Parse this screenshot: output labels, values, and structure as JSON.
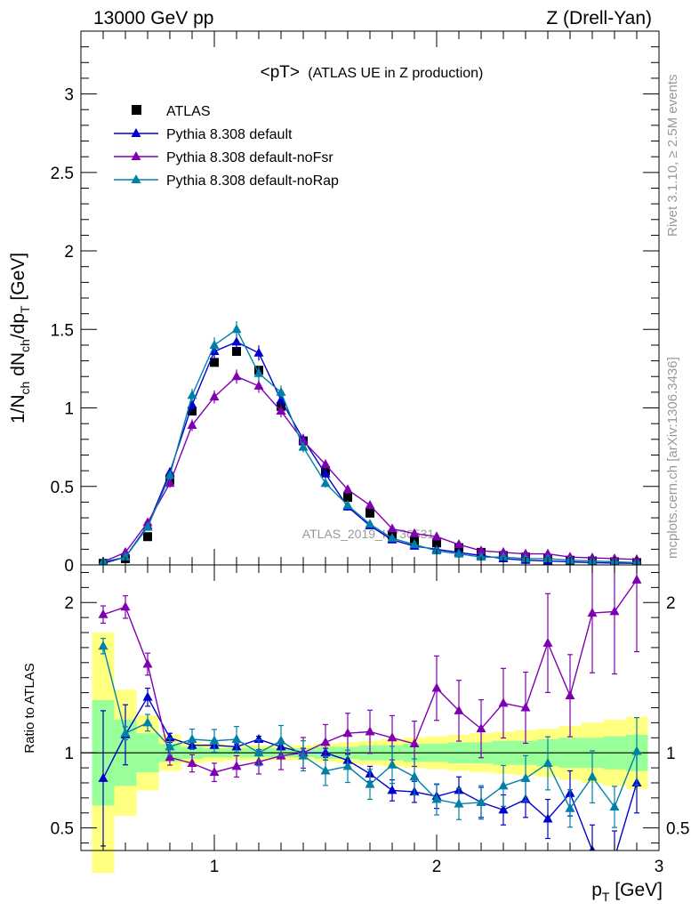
{
  "header": {
    "left": "13000 GeV pp",
    "right": "Z (Drell-Yan)"
  },
  "side_labels": {
    "rivet": "Rivet 3.1.10, ≥ 2.5M events",
    "mcplots": "mcplots.cern.ch [arXiv:1306.3436]"
  },
  "colors": {
    "atlas": "#000000",
    "default": "#0000cc",
    "noFsr": "#7f00b2",
    "noRap": "#0080a8",
    "band_outer": "#ffff80",
    "band_inner": "#99ff99"
  },
  "chart_data": [
    {
      "type": "scatter",
      "title": "<pT>",
      "subtitle": "(ATLAS UE in Z production)",
      "xlabel": "p_T [GeV]",
      "ylabel": "1/N_ch dN_ch/dp_T [GeV]",
      "watermark": "ATLAS_2019_I1736531",
      "xlim": [
        0.4,
        3.0
      ],
      "ylim": [
        0,
        3.4
      ],
      "yticks": [
        0,
        0.5,
        1,
        1.5,
        2,
        2.5,
        3
      ],
      "yticklabels": [
        "0",
        "0.5",
        "1",
        "1.5",
        "2",
        "2.5",
        "3"
      ],
      "legend_position": "top-left",
      "x": [
        0.5,
        0.6,
        0.7,
        0.8,
        0.9,
        1.0,
        1.1,
        1.2,
        1.3,
        1.4,
        1.5,
        1.6,
        1.7,
        1.8,
        1.9,
        2.0,
        2.1,
        2.2,
        2.3,
        2.4,
        2.5,
        2.6,
        2.7,
        2.8,
        2.9
      ],
      "series": [
        {
          "name": "ATLAS",
          "marker": "square",
          "color": "#000000",
          "values": [
            0.01,
            0.04,
            0.18,
            0.54,
            0.98,
            1.29,
            1.36,
            1.24,
            1.01,
            0.79,
            0.6,
            0.43,
            0.33,
            0.19,
            0.15,
            0.14,
            0.11,
            0.08,
            0.06,
            0.05,
            0.04,
            0.03,
            0.025,
            0.02,
            0.015
          ]
        },
        {
          "name": "Pythia 8.308 default",
          "marker": "triangle",
          "color": "#0000cc",
          "values": [
            0.01,
            0.05,
            0.25,
            0.59,
            1.02,
            1.36,
            1.42,
            1.35,
            1.05,
            0.8,
            0.58,
            0.37,
            0.25,
            0.16,
            0.12,
            0.1,
            0.08,
            0.06,
            0.04,
            0.03,
            0.025,
            0.02,
            0.015,
            0.012,
            0.01
          ]
        },
        {
          "name": "Pythia 8.308 default-noFsr",
          "marker": "triangle",
          "color": "#7f00b2",
          "values": [
            0.02,
            0.08,
            0.27,
            0.52,
            0.89,
            1.07,
            1.2,
            1.14,
            0.98,
            0.79,
            0.64,
            0.48,
            0.38,
            0.23,
            0.2,
            0.18,
            0.13,
            0.09,
            0.08,
            0.07,
            0.07,
            0.05,
            0.045,
            0.04,
            0.035
          ]
        },
        {
          "name": "Pythia 8.308 default-noRap",
          "marker": "triangle",
          "color": "#0080a8",
          "values": [
            0.02,
            0.05,
            0.24,
            0.57,
            1.08,
            1.4,
            1.5,
            1.22,
            1.1,
            0.75,
            0.52,
            0.38,
            0.26,
            0.17,
            0.13,
            0.09,
            0.07,
            0.05,
            0.05,
            0.04,
            0.04,
            0.03,
            0.025,
            0.02,
            0.015
          ]
        }
      ]
    },
    {
      "type": "scatter",
      "title": "",
      "ylabel": "Ratio to ATLAS",
      "xlabel": "p_T [GeV]",
      "xlim": [
        0.4,
        3.0
      ],
      "ylim": [
        0.35,
        2.25
      ],
      "xticks": [
        1,
        2,
        3
      ],
      "xticklabels": [
        "1",
        "2",
        "3"
      ],
      "yticks": [
        0.5,
        1,
        2
      ],
      "yticklabels": [
        "0.5",
        "1",
        "2"
      ],
      "reference_line": 1,
      "x": [
        0.5,
        0.6,
        0.7,
        0.8,
        0.9,
        1.0,
        1.1,
        1.2,
        1.3,
        1.4,
        1.5,
        1.6,
        1.7,
        1.8,
        1.9,
        2.0,
        2.1,
        2.2,
        2.3,
        2.4,
        2.5,
        2.6,
        2.7,
        2.8,
        2.9
      ],
      "band_outer_halfwidth": [
        0.8,
        0.42,
        0.25,
        0.12,
        0.07,
        0.06,
        0.05,
        0.05,
        0.05,
        0.05,
        0.06,
        0.07,
        0.08,
        0.09,
        0.1,
        0.11,
        0.12,
        0.13,
        0.14,
        0.15,
        0.16,
        0.18,
        0.2,
        0.22,
        0.24
      ],
      "band_inner_halfwidth": [
        0.35,
        0.22,
        0.13,
        0.06,
        0.04,
        0.03,
        0.03,
        0.03,
        0.03,
        0.03,
        0.04,
        0.04,
        0.05,
        0.05,
        0.06,
        0.06,
        0.07,
        0.07,
        0.08,
        0.08,
        0.09,
        0.1,
        0.1,
        0.11,
        0.12
      ],
      "series": [
        {
          "name": "Pythia 8.308 default",
          "color": "#0000cc",
          "values": [
            0.83,
            1.12,
            1.37,
            1.1,
            1.05,
            1.05,
            1.04,
            1.09,
            1.04,
            1.0,
            1.0,
            0.95,
            0.86,
            0.75,
            0.74,
            0.71,
            0.75,
            0.67,
            0.62,
            0.69,
            0.56,
            0.73,
            0.35,
            0.3,
            0.8
          ],
          "errors": [
            0.45,
            0.2,
            0.06,
            0.03,
            0.02,
            0.02,
            0.02,
            0.02,
            0.02,
            0.03,
            0.03,
            0.04,
            0.05,
            0.07,
            0.07,
            0.08,
            0.09,
            0.1,
            0.1,
            0.12,
            0.13,
            0.15,
            0.17,
            0.18,
            0.2
          ]
        },
        {
          "name": "Pythia 8.308 default-noFsr",
          "color": "#7f00b2",
          "values": [
            1.92,
            1.97,
            1.59,
            0.97,
            0.93,
            0.87,
            0.91,
            0.94,
            0.98,
            1.0,
            1.07,
            1.13,
            1.14,
            1.1,
            1.06,
            1.43,
            1.28,
            1.16,
            1.33,
            1.3,
            1.73,
            1.38,
            1.93,
            1.94,
            2.15
          ]
        },
        {
          "name": "Pythia 8.308 default-noRap",
          "color": "#0080a8",
          "values": [
            1.71,
            1.13,
            1.2,
            1.04,
            1.09,
            1.08,
            1.09,
            1.0,
            1.08,
            0.98,
            0.88,
            0.91,
            0.79,
            0.92,
            0.84,
            0.69,
            0.66,
            0.67,
            0.78,
            0.83,
            0.93,
            0.63,
            0.84,
            0.64,
            1.01
          ]
        }
      ]
    }
  ]
}
